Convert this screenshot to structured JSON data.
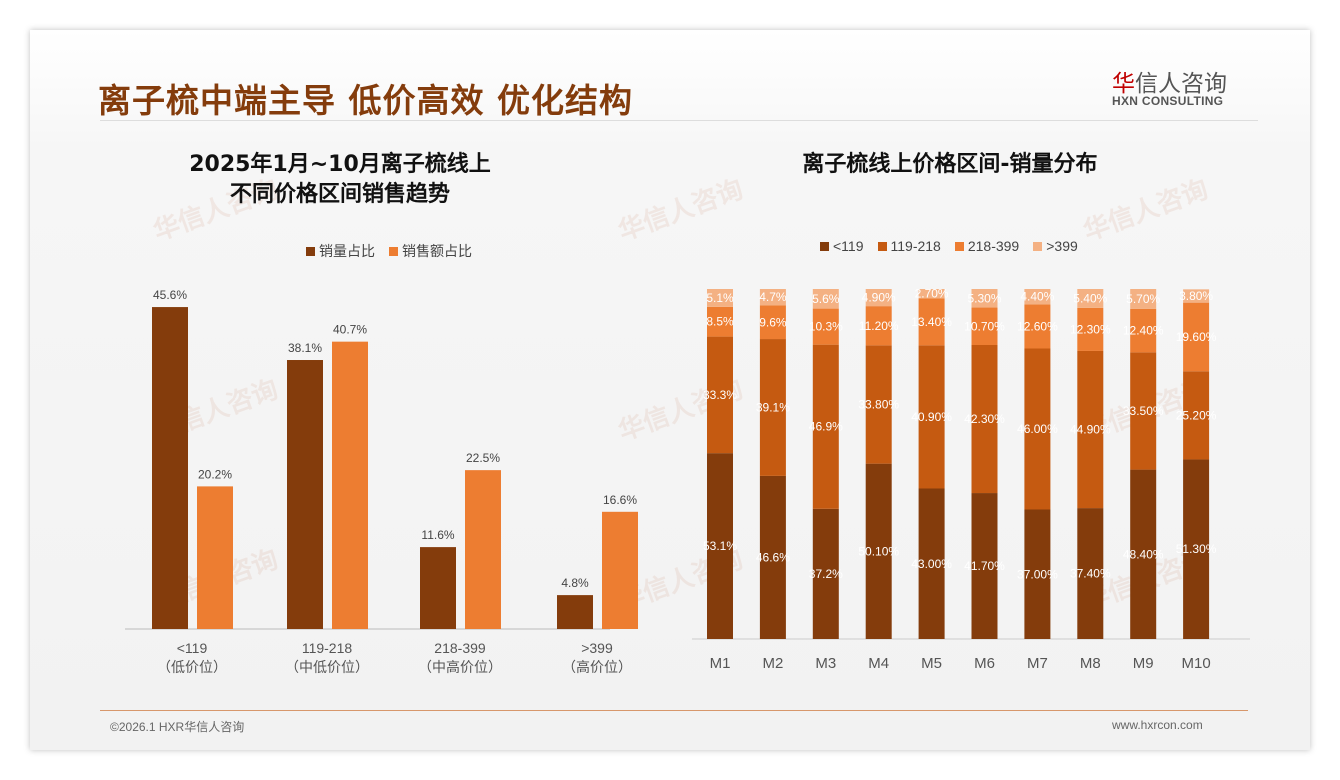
{
  "header": {
    "title": "离子梳中端主导 低价高效 优化结构",
    "logo_cn_red": "华",
    "logo_cn_rest": "信人咨询",
    "logo_en": "HXN CONSULTING"
  },
  "footer": {
    "copyright": "©2026.1 HXR华信人咨询",
    "website": "www.hxrcon.com"
  },
  "colors": {
    "dark": "#843c0c",
    "mid": "#c55a11",
    "orange": "#ed7d31",
    "light": "#f4b183"
  },
  "chart_data": [
    {
      "type": "bar",
      "title_line1": "2025年1月~10月离子梳线上",
      "title_line2": "不同价格区间销售趋势",
      "categories": [
        "<119",
        "119-218",
        "218-399",
        ">399"
      ],
      "sublabels": [
        "（低价位）",
        "（中低价位）",
        "（中高价位）",
        "（高价位）"
      ],
      "series": [
        {
          "name": "销量占比",
          "values": [
            45.6,
            38.1,
            11.6,
            4.8
          ],
          "color": "#843c0c"
        },
        {
          "name": "销售额占比",
          "values": [
            20.2,
            40.7,
            22.5,
            16.6
          ],
          "color": "#ed7d31"
        }
      ],
      "unit": "%",
      "ylim": [
        0,
        50
      ],
      "legend": "top"
    },
    {
      "type": "bar",
      "stacked": true,
      "title": "离子梳线上价格区间-销量分布",
      "categories": [
        "M1",
        "M2",
        "M3",
        "M4",
        "M5",
        "M6",
        "M7",
        "M8",
        "M9",
        "M10"
      ],
      "series": [
        {
          "name": "<119",
          "labels": [
            "53.1%",
            "46.6%",
            "37.2%",
            "50.10%",
            "43.00%",
            "41.70%",
            "37.00%",
            "37.40%",
            "48.40%",
            "51.30%"
          ],
          "values": [
            53.1,
            46.6,
            37.2,
            50.1,
            43.0,
            41.7,
            37.0,
            37.4,
            48.4,
            51.3
          ],
          "color": "#843c0c"
        },
        {
          "name": "119-218",
          "labels": [
            "33.3%",
            "39.1%",
            "46.9%",
            "33.80%",
            "40.90%",
            "42.30%",
            "46.00%",
            "44.90%",
            "33.50%",
            "25.20%"
          ],
          "values": [
            33.3,
            39.1,
            46.9,
            33.8,
            40.9,
            42.3,
            46.0,
            44.9,
            33.5,
            25.2
          ],
          "color": "#c55a11"
        },
        {
          "name": "218-399",
          "labels": [
            "8.5%",
            "9.6%",
            "10.3%",
            "11.20%",
            "13.40%",
            "10.70%",
            "12.60%",
            "12.30%",
            "12.40%",
            "19.60%"
          ],
          "values": [
            8.5,
            9.6,
            10.3,
            11.2,
            13.4,
            10.7,
            12.6,
            12.3,
            12.4,
            19.6
          ],
          "color": "#ed7d31"
        },
        {
          "name": ">399",
          "labels": [
            "5.1%",
            "4.7%",
            "5.6%",
            "4.90%",
            "2.70%",
            "5.30%",
            "4.40%",
            "5.40%",
            "5.70%",
            "3.80%"
          ],
          "values": [
            5.1,
            4.7,
            5.6,
            4.9,
            2.7,
            5.3,
            4.4,
            5.4,
            5.7,
            3.8
          ],
          "color": "#f4b183"
        }
      ],
      "ylim": [
        0,
        100
      ],
      "legend": "top"
    }
  ]
}
